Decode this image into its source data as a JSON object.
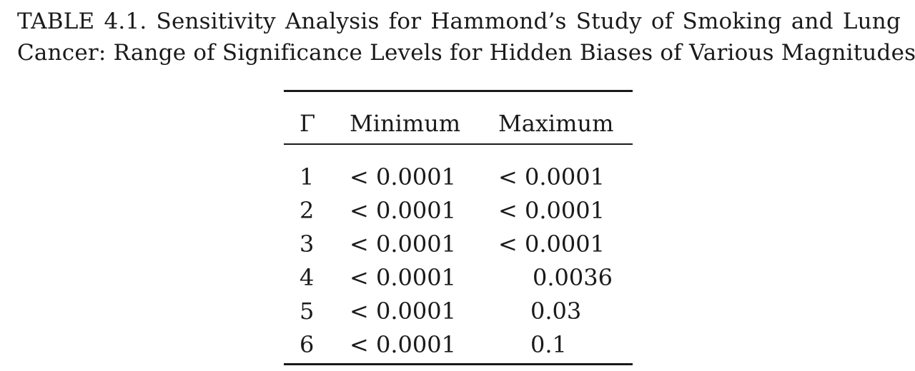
{
  "caption": {
    "line1": "TABLE 4.1. Sensitivity Analysis for Hammond’s Study of Smoking and Lung",
    "line2": "Cancer: Range of Significance Levels for Hidden Biases of Various Magnitudes."
  },
  "table": {
    "columns": [
      "Γ",
      "Minimum",
      "Maximum"
    ],
    "rows": [
      {
        "gamma": "1",
        "minimum": "< 0.0001",
        "maximum": "< 0.0001"
      },
      {
        "gamma": "2",
        "minimum": "< 0.0001",
        "maximum": "< 0.0001"
      },
      {
        "gamma": "3",
        "minimum": "< 0.0001",
        "maximum": "< 0.0001"
      },
      {
        "gamma": "4",
        "minimum": "< 0.0001",
        "maximum": "0.0036"
      },
      {
        "gamma": "5",
        "minimum": "< 0.0001",
        "maximum": "0.03"
      },
      {
        "gamma": "6",
        "minimum": "< 0.0001",
        "maximum": "0.1"
      }
    ]
  }
}
